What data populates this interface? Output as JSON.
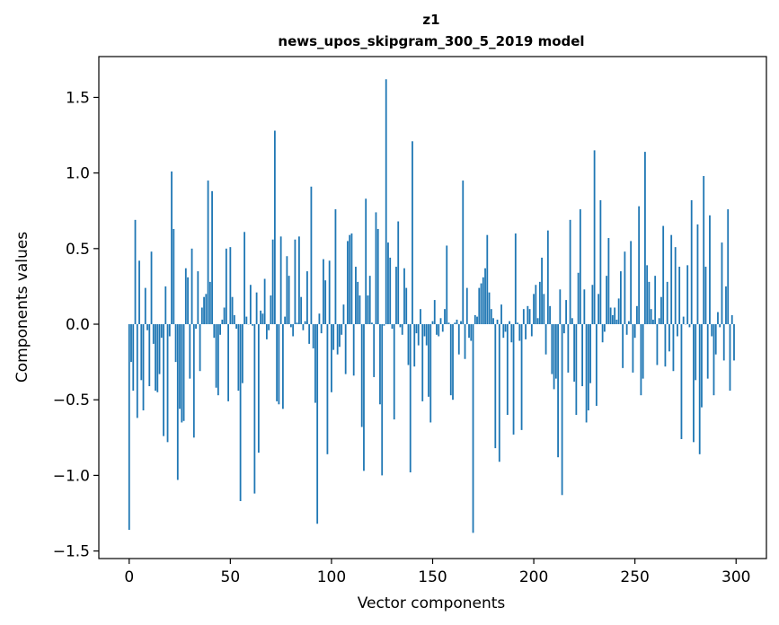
{
  "chart_data": {
    "type": "bar",
    "title": "z1",
    "subtitle": "news_upos_skipgram_300_5_2019 model",
    "xlabel": "Vector components",
    "ylabel": "Components values",
    "xlim": [
      -15,
      315
    ],
    "ylim": [
      -1.55,
      1.77
    ],
    "xticks": [
      0,
      50,
      100,
      150,
      200,
      250,
      300
    ],
    "xtick_labels": [
      "0",
      "50",
      "100",
      "150",
      "200",
      "250",
      "300"
    ],
    "yticks": [
      -1.5,
      -1.0,
      -0.5,
      0.0,
      0.5,
      1.0,
      1.5
    ],
    "ytick_labels": [
      "−1.5",
      "−1.0",
      "−0.5",
      "0.0",
      "0.5",
      "1.0",
      "1.5"
    ],
    "bar_color": "#1f77b4",
    "grid": false,
    "series": [
      {
        "x_start": 0,
        "values": [
          -1.36,
          -0.25,
          -0.44,
          0.69,
          -0.62,
          0.42,
          -0.37,
          -0.57,
          0.24,
          -0.04,
          -0.41,
          0.48,
          -0.13,
          -0.44,
          -0.45,
          -0.33,
          -0.09,
          -0.74,
          0.25,
          -0.78,
          -0.08,
          1.01,
          0.63,
          -0.25,
          -1.03,
          -0.56,
          -0.65,
          -0.64,
          0.37,
          0.31,
          -0.36,
          0.5,
          -0.75,
          -0.03,
          0.35,
          -0.31,
          0.11,
          0.18,
          0.2,
          0.95,
          0.28,
          0.88,
          -0.09,
          -0.42,
          -0.47,
          -0.07,
          0.03,
          0.11,
          0.5,
          -0.51,
          0.51,
          0.18,
          0.06,
          -0.03,
          -0.44,
          -1.17,
          -0.39,
          0.61,
          0.05,
          0.0,
          0.26,
          -0.01,
          -1.12,
          0.21,
          -0.85,
          0.09,
          0.07,
          0.3,
          -0.1,
          -0.04,
          0.19,
          0.56,
          1.28,
          -0.51,
          -0.53,
          0.58,
          -0.56,
          0.05,
          0.45,
          0.32,
          -0.02,
          -0.08,
          0.56,
          0.01,
          0.58,
          0.18,
          -0.04,
          0.02,
          0.35,
          -0.13,
          0.91,
          -0.16,
          -0.52,
          -1.32,
          0.07,
          -0.06,
          0.43,
          0.29,
          -0.86,
          0.42,
          -0.45,
          -0.17,
          0.76,
          -0.2,
          -0.15,
          -0.07,
          0.13,
          -0.33,
          0.55,
          0.59,
          0.6,
          -0.34,
          0.38,
          0.28,
          0.19,
          -0.68,
          -0.97,
          0.83,
          0.19,
          0.32,
          0.01,
          -0.35,
          0.74,
          0.63,
          -0.53,
          -1.0,
          -0.01,
          1.62,
          0.54,
          0.44,
          -0.03,
          -0.63,
          0.38,
          0.68,
          -0.02,
          -0.07,
          0.37,
          0.24,
          -0.27,
          -0.98,
          1.21,
          -0.28,
          -0.06,
          -0.14,
          0.1,
          -0.51,
          -0.08,
          -0.14,
          -0.48,
          -0.65,
          0.02,
          0.16,
          -0.07,
          -0.08,
          0.04,
          -0.05,
          0.1,
          0.52,
          0.01,
          -0.47,
          -0.5,
          0.01,
          0.03,
          -0.2,
          0.02,
          0.95,
          -0.23,
          0.24,
          -0.09,
          -0.11,
          -1.38,
          0.06,
          0.05,
          0.24,
          0.27,
          0.31,
          0.37,
          0.59,
          0.21,
          0.1,
          0.04,
          -0.82,
          0.03,
          -0.91,
          0.13,
          -0.09,
          -0.05,
          -0.6,
          0.02,
          -0.12,
          -0.73,
          0.6,
          0.01,
          -0.11,
          -0.7,
          0.1,
          -0.1,
          0.12,
          0.1,
          -0.08,
          0.2,
          0.26,
          0.04,
          0.28,
          0.44,
          0.2,
          -0.2,
          0.62,
          0.12,
          -0.33,
          -0.43,
          -0.36,
          -0.88,
          0.23,
          -1.13,
          -0.06,
          0.16,
          -0.32,
          0.69,
          0.04,
          -0.38,
          -0.6,
          0.34,
          0.76,
          -0.41,
          0.23,
          -0.65,
          -0.57,
          -0.39,
          0.26,
          1.15,
          -0.54,
          0.2,
          0.82,
          -0.12,
          -0.05,
          0.32,
          0.57,
          0.11,
          0.06,
          0.11,
          0.03,
          0.17,
          0.35,
          -0.29,
          0.48,
          -0.07,
          0.02,
          0.55,
          -0.32,
          -0.09,
          0.12,
          0.78,
          -0.47,
          -0.36,
          1.14,
          0.39,
          0.28,
          0.1,
          0.03,
          0.32,
          -0.27,
          0.04,
          0.18,
          0.65,
          -0.28,
          0.28,
          -0.18,
          0.59,
          -0.31,
          0.51,
          -0.08,
          0.38,
          -0.76,
          0.05,
          0.0,
          0.39,
          -0.02,
          0.82,
          -0.78,
          -0.37,
          0.66,
          -0.86,
          -0.55,
          0.98,
          0.38,
          -0.36,
          0.72,
          -0.08,
          -0.47,
          -0.2,
          0.08,
          -0.02,
          0.54,
          -0.24,
          0.25,
          0.76,
          -0.44,
          0.06,
          -0.24
        ]
      }
    ]
  }
}
